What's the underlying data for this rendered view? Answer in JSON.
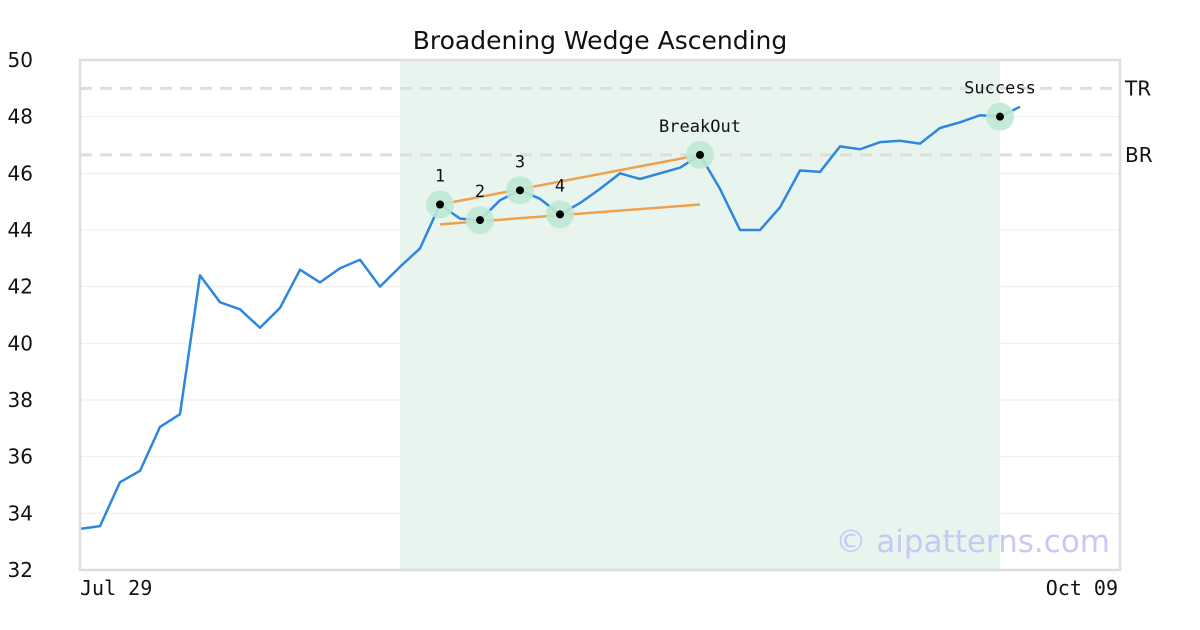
{
  "chart_data": {
    "type": "line",
    "title": "Broadening Wedge Ascending",
    "xlabel": "",
    "ylabel": "",
    "ylim": [
      32,
      50
    ],
    "yticks": [
      32,
      34,
      36,
      38,
      40,
      42,
      44,
      46,
      48,
      50
    ],
    "x_tick_labels": [
      {
        "index": 0,
        "label": "Jul 29"
      },
      {
        "index": 52,
        "label": "Oct 09"
      }
    ],
    "series": [
      {
        "values": [
          33.45,
          33.55,
          35.1,
          35.5,
          37.05,
          37.5,
          42.4,
          41.45,
          41.2,
          40.55,
          41.25,
          42.6,
          42.15,
          42.65,
          42.95,
          42.0,
          42.7,
          43.35,
          44.9,
          44.4,
          44.35,
          45.05,
          45.4,
          45.1,
          44.55,
          44.95,
          45.45,
          46.0,
          45.8,
          46.0,
          46.2,
          46.65,
          45.45,
          44.0,
          44.0,
          44.8,
          46.1,
          46.05,
          46.95,
          46.85,
          47.1,
          47.15,
          47.05,
          47.6,
          47.8,
          48.05,
          48.0,
          48.35
        ]
      }
    ],
    "highlight_range": {
      "start_index": 16,
      "end_index": 46,
      "color": "#e8f5ef"
    },
    "trend_lines": [
      {
        "from": {
          "index": 18,
          "value": 44.9
        },
        "to": {
          "index": 31,
          "value": 46.65
        },
        "color": "#f0a04b"
      },
      {
        "from": {
          "index": 18,
          "value": 44.2
        },
        "to": {
          "index": 31,
          "value": 44.9
        },
        "color": "#f0a04b"
      }
    ],
    "levels": [
      {
        "label": "TR",
        "value": 49.0
      },
      {
        "label": "BR",
        "value": 46.65
      }
    ],
    "markers": [
      {
        "label": "1",
        "index": 18,
        "value": 44.9
      },
      {
        "label": "2",
        "index": 20,
        "value": 44.35
      },
      {
        "label": "3",
        "index": 22,
        "value": 45.4
      },
      {
        "label": "4",
        "index": 24,
        "value": 44.55
      },
      {
        "label": "BreakOut",
        "index": 31,
        "value": 46.65
      },
      {
        "label": "Success",
        "index": 46,
        "value": 48.0
      }
    ],
    "grid": true,
    "colors": {
      "line": "#2e86de",
      "marker_halo": "#bfe8d4",
      "marker_dot": "#000000",
      "level_line": "#dddddd",
      "axis_frame": "#dddddd",
      "gridline": "#eeeeee"
    }
  },
  "watermark": {
    "text": "© aipatterns.com",
    "color": "#c8c8f5"
  }
}
